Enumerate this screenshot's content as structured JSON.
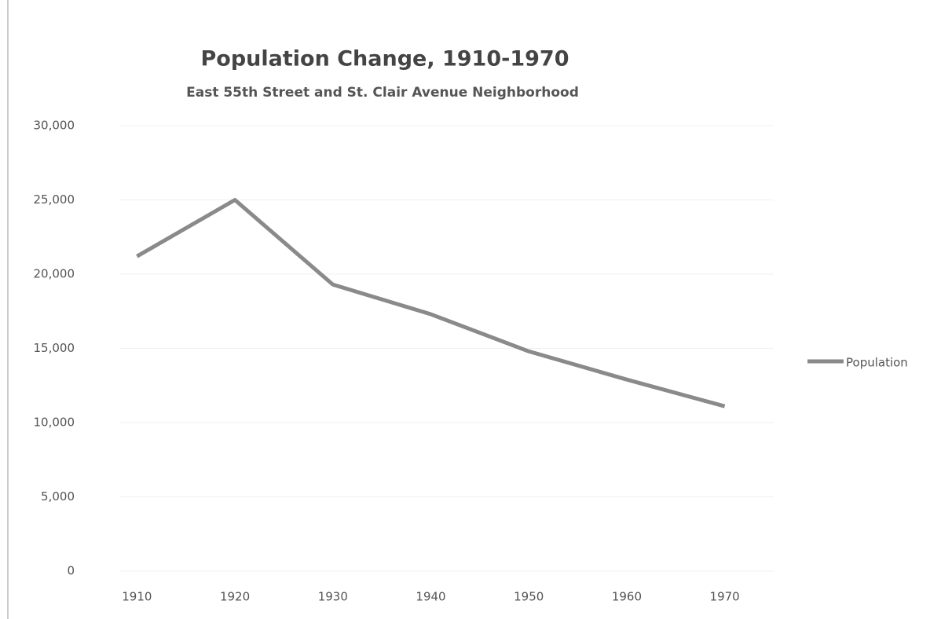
{
  "chart_data": {
    "type": "line",
    "title": "Population Change, 1910-1970",
    "subtitle": "East 55th Street and St. Clair Avenue Neighborhood",
    "categories": [
      "1910",
      "1920",
      "1930",
      "1940",
      "1950",
      "1960",
      "1970"
    ],
    "series": [
      {
        "name": "Population",
        "color": "#8a8a8a",
        "values": [
          21200,
          25000,
          19300,
          17300,
          14800,
          12900,
          11100
        ]
      }
    ],
    "ylim": [
      0,
      30000
    ],
    "yticks": [
      0,
      {
        "value": 5000,
        "label": "5,000"
      },
      {
        "value": 10000,
        "label": "10,000"
      },
      {
        "value": 15000,
        "label": "15,000"
      },
      {
        "value": 20000,
        "label": "20,000"
      },
      {
        "value": 25000,
        "label": "25,000"
      },
      {
        "value": 30000,
        "label": "30,000"
      }
    ],
    "grid": true,
    "legend": "right"
  }
}
